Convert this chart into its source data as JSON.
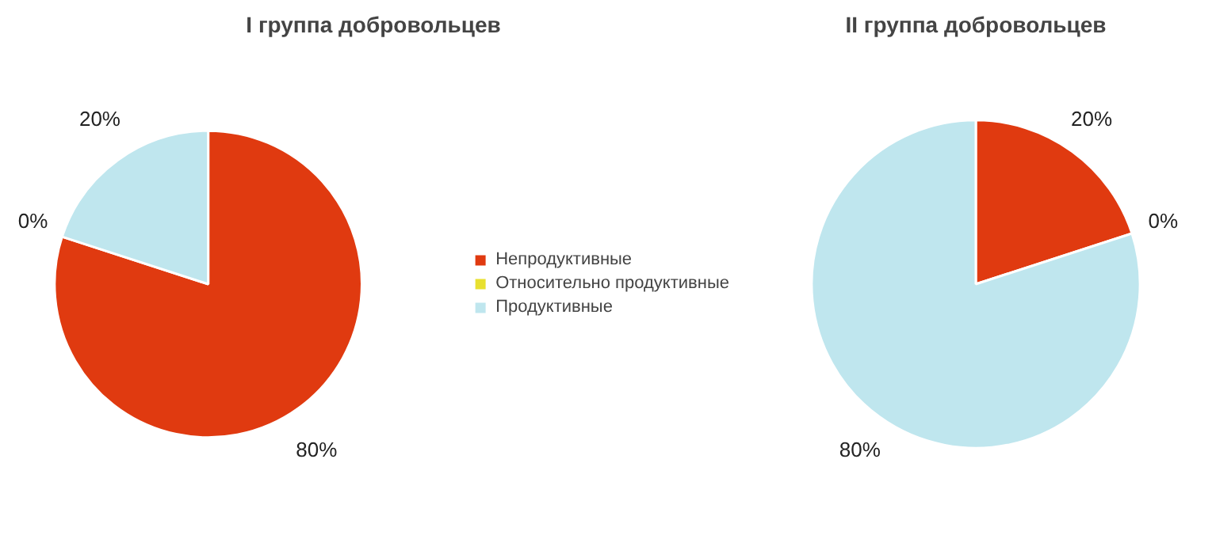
{
  "chart_data": [
    {
      "type": "pie",
      "title": "I группа добровольцев",
      "categories": [
        "Непродуктивные",
        "Относительно продуктивные",
        "Продуктивные"
      ],
      "values": [
        80,
        0,
        20
      ],
      "value_labels": [
        "80%",
        "0%",
        "20%"
      ],
      "colors": [
        "#e03a10",
        "#e8e030",
        "#bfe6ee"
      ],
      "legend": "right"
    },
    {
      "type": "pie",
      "title": "II группа добровольцев",
      "values": [
        20,
        0,
        80
      ],
      "value_labels": [
        "20%",
        "0%",
        "80%"
      ],
      "colors": [
        "#e03a10",
        "#e8e030",
        "#bfe6ee"
      ],
      "legend": false
    }
  ]
}
